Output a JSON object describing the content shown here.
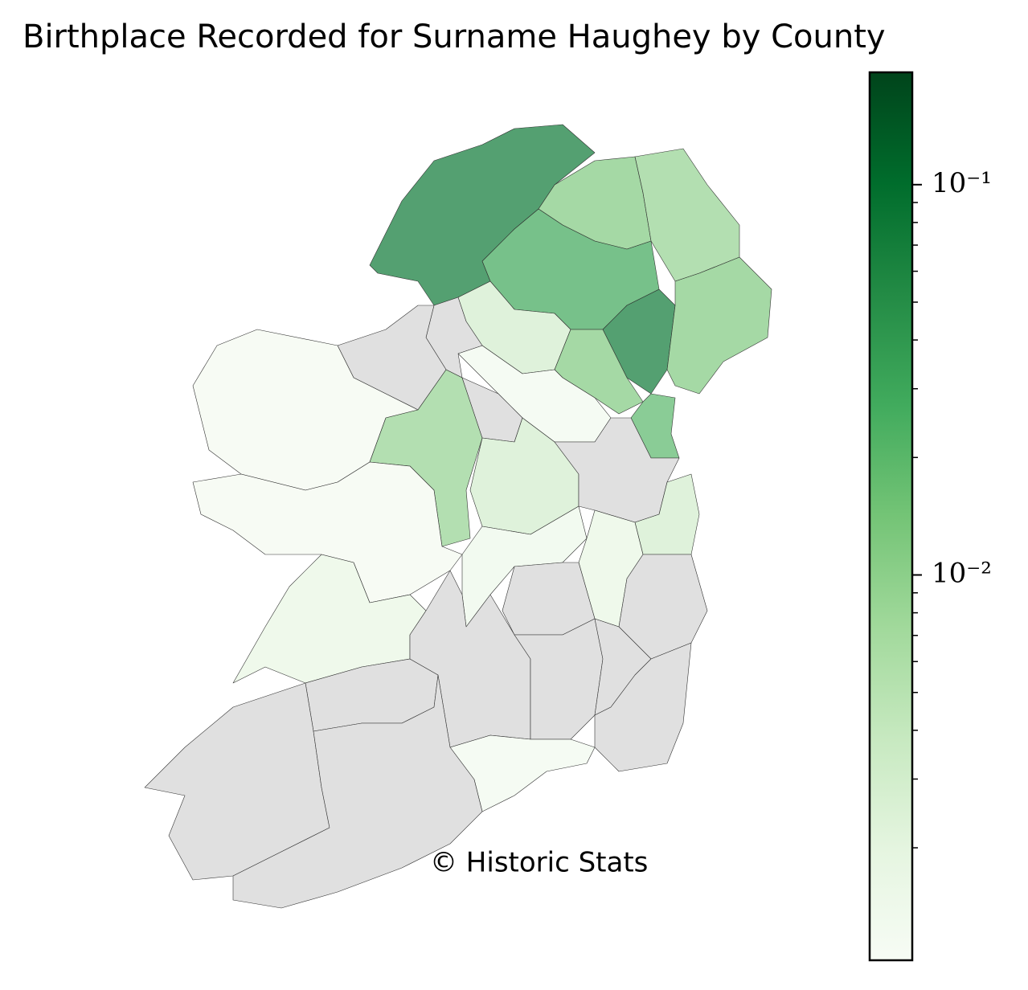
{
  "chart_data": {
    "type": "choropleth",
    "title": "Birthplace Recorded for Surname Haughey by County",
    "annotation": "© Historic Stats",
    "values": [
      0.08,
      0.012,
      0.009,
      0.03,
      0.08,
      0.012,
      0.003,
      0.012,
      0.02,
      0.0013,
      null,
      null,
      0.0012,
      0.009,
      null,
      0.0012,
      0.003,
      null,
      0.003,
      0.0015,
      0.0018,
      null,
      null,
      0.0018,
      null,
      null,
      null,
      null,
      null,
      0.0013,
      null,
      null
    ],
    "colormap": [
      "#f7fcf5",
      "#e5f5e0",
      "#c7e9c0",
      "#a1d99b",
      "#74c476",
      "#41ab5d",
      "#238b45",
      "#006d2c",
      "#00441b"
    ],
    "alpha": 0.7,
    "missing_color": "#e0e0e0",
    "colorbar_scale": "log",
    "clim": [
      0.00103,
      0.194
    ],
    "colorbar_ticks": [
      {
        "value": 0.1,
        "label": "10⁻¹"
      },
      {
        "value": 0.01,
        "label": "10⁻²"
      }
    ],
    "colorbar_minor_ticks": [
      0.002,
      0.003,
      0.004,
      0.005,
      0.006,
      0.007,
      0.008,
      0.009,
      0.02,
      0.03,
      0.04,
      0.05,
      0.06,
      0.07,
      0.08,
      0.09
    ]
  }
}
